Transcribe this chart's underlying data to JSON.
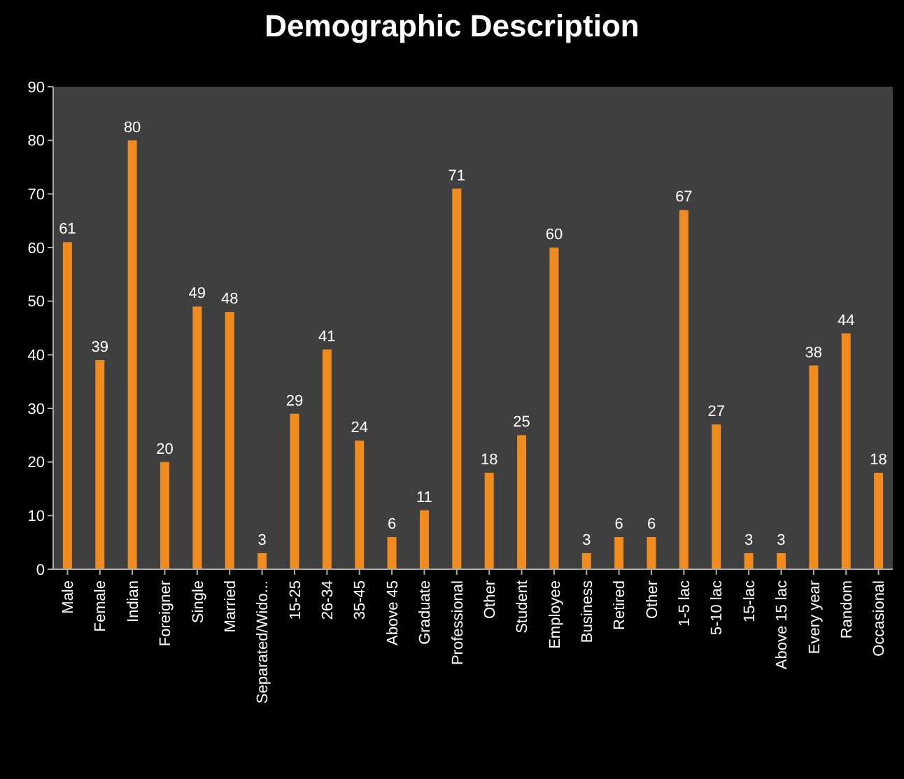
{
  "chart_data": {
    "type": "bar",
    "title": "Demographic Description",
    "categories": [
      "Male",
      "Female",
      "Indian",
      "Foreigner",
      "Single",
      "Married",
      "Separated/Wido...",
      "15-25",
      "26-34",
      "35-45",
      "Above 45",
      "Graduate",
      "Professional",
      "Other",
      "Student",
      "Employee",
      "Business",
      "Retired",
      "Other",
      "1-5 lac",
      "5-10 lac",
      "15-lac",
      "Above 15 lac",
      "Every year",
      "Random",
      "Occasional"
    ],
    "values": [
      61,
      39,
      80,
      20,
      49,
      48,
      3,
      29,
      41,
      24,
      6,
      11,
      71,
      18,
      25,
      60,
      3,
      6,
      6,
      67,
      27,
      3,
      3,
      38,
      44,
      18
    ],
    "color": "#f08c1e",
    "data_labels": true,
    "ylim": [
      0,
      90
    ],
    "yticks": [
      0,
      10,
      20,
      30,
      40,
      50,
      60,
      70,
      80,
      90
    ],
    "grid": false
  }
}
